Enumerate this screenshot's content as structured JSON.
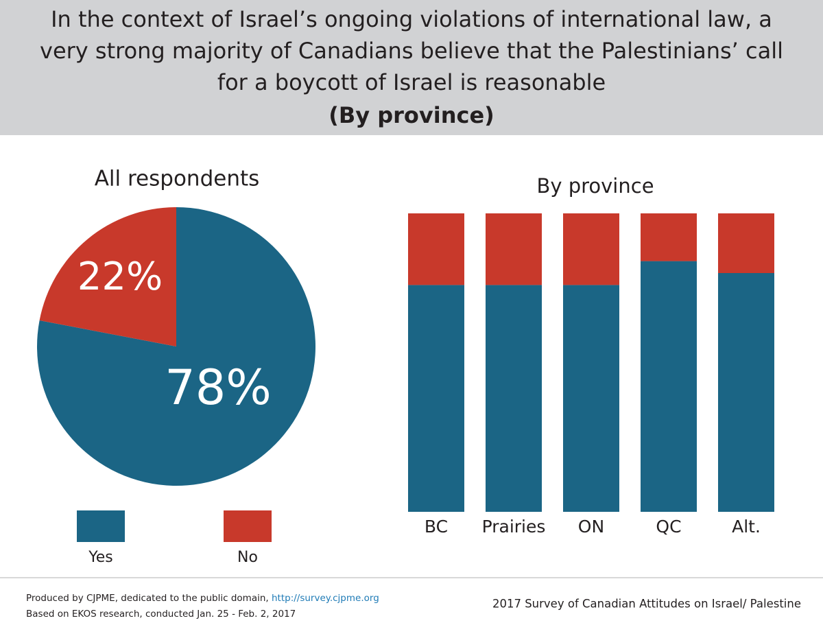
{
  "header": {
    "title_lines": [
      "In the context of Israel’s ongoing violations of international law, a",
      "very strong majority of Canadians believe that the Palestinians’ call",
      "for a boycott of Israel is reasonable"
    ],
    "subtitle": "(By province)"
  },
  "chart_data": [
    {
      "type": "pie",
      "title": "All respondents",
      "categories": [
        "Yes",
        "No"
      ],
      "values": [
        78,
        22
      ],
      "value_labels": [
        "78%",
        "22%"
      ],
      "colors": [
        "#1b6585",
        "#c8392b"
      ]
    },
    {
      "type": "bar",
      "stacked": true,
      "title": "By province",
      "categories": [
        "BC",
        "Prairies",
        "ON",
        "QC",
        "Alt."
      ],
      "ylim": [
        0,
        100
      ],
      "series": [
        {
          "color": "#1b6585",
          "values": [
            76,
            76,
            76,
            84,
            80
          ]
        },
        {
          "color": "#c8392b",
          "values": [
            24,
            24,
            24,
            16,
            20
          ]
        }
      ]
    }
  ],
  "footer": {
    "produced": "Produced by CJPME, dedicated to the public domain, ",
    "link": "http://survey.cjpme.org",
    "based": "Based on EKOS research, conducted Jan. 25 - Feb. 2, 2017",
    "survey": "2017 Survey of Canadian Attitudes on Israel/ Palestine"
  }
}
